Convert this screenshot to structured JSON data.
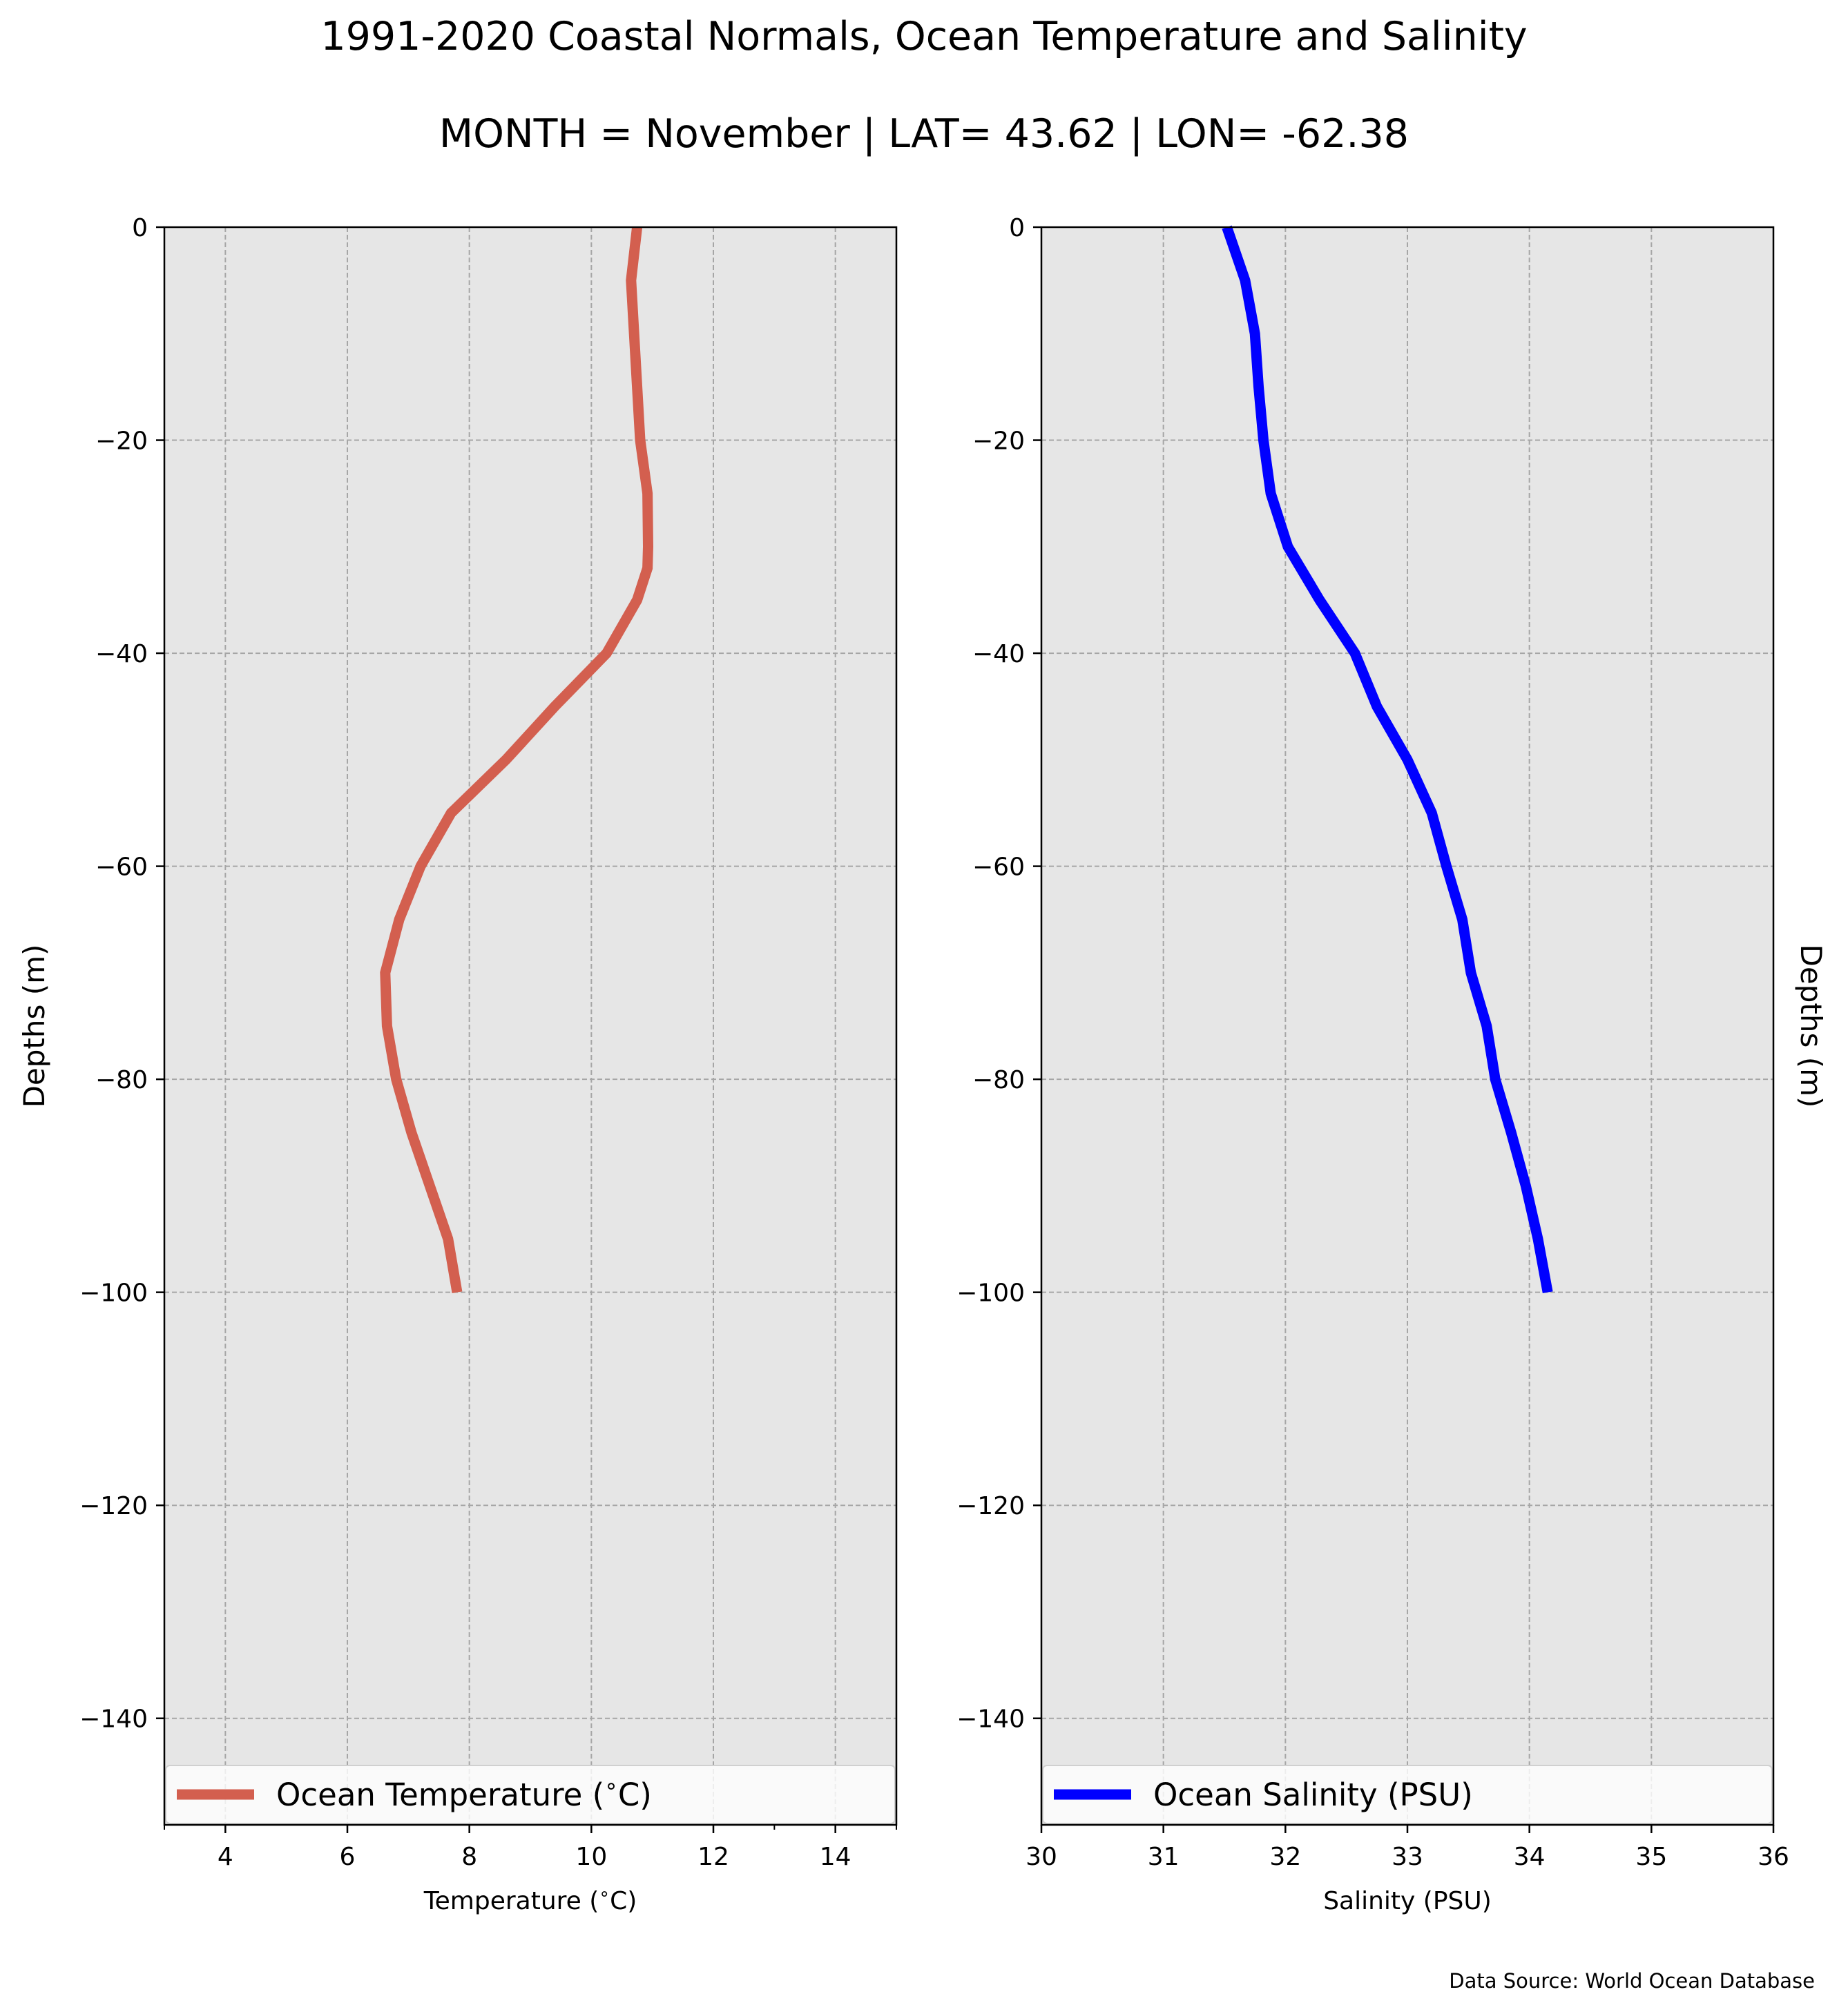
{
  "figure": {
    "title": "1991-2020 Coastal Normals, Ocean Temperature and Salinity",
    "subtitle": "MONTH = November | LAT= 43.62 | LON= -62.38",
    "source": "Data Source: World Ocean Database"
  },
  "chart_data": [
    {
      "type": "line",
      "title": "",
      "xlabel": "Temperature ($^\\circ$C)",
      "ylabel": "Depths (m)",
      "xlim": [
        3,
        15
      ],
      "ylim": [
        -150,
        0
      ],
      "x_ticks": [
        4,
        6,
        8,
        10,
        12,
        14
      ],
      "y_ticks": [
        0,
        -20,
        -40,
        -60,
        -80,
        -100,
        -120,
        -140
      ],
      "grid": true,
      "legend_position": "bottom",
      "background": "#e6e6e6",
      "series": [
        {
          "name": "Ocean Temperature ($^\\circ$C)",
          "color": "#d35f4f",
          "x": [
            10.75,
            10.65,
            10.7,
            10.75,
            10.8,
            10.92,
            10.93,
            10.92,
            10.75,
            10.25,
            9.4,
            8.6,
            7.7,
            7.2,
            6.85,
            6.62,
            6.65,
            6.8,
            7.05,
            7.35,
            7.65,
            7.8
          ],
          "y": [
            0,
            -5,
            -10,
            -15,
            -20,
            -25,
            -30,
            -32,
            -35,
            -40,
            -45,
            -50,
            -55,
            -60,
            -65,
            -70,
            -75,
            -80,
            -85,
            -90,
            -95,
            -100
          ]
        }
      ]
    },
    {
      "type": "line",
      "title": "",
      "xlabel": "Salinity (PSU)",
      "ylabel": "Depths (m)",
      "xlim": [
        30,
        36
      ],
      "ylim": [
        -150,
        0
      ],
      "x_ticks": [
        30,
        31,
        32,
        33,
        34,
        35,
        36
      ],
      "y_ticks": [
        0,
        -20,
        -40,
        -60,
        -80,
        -100,
        -120,
        -140
      ],
      "grid": true,
      "legend_position": "bottom",
      "background": "#e6e6e6",
      "series": [
        {
          "name": "Ocean Salinity (PSU)",
          "color": "#0000ff",
          "x": [
            31.52,
            31.67,
            31.75,
            31.78,
            31.82,
            31.88,
            32.02,
            32.28,
            32.57,
            32.75,
            33.0,
            33.2,
            33.32,
            33.45,
            33.52,
            33.65,
            33.72,
            33.85,
            33.97,
            34.07,
            34.15
          ],
          "y": [
            0,
            -5,
            -10,
            -15,
            -20,
            -25,
            -30,
            -35,
            -40,
            -45,
            -50,
            -55,
            -60,
            -65,
            -70,
            -75,
            -80,
            -85,
            -90,
            -95,
            -100
          ]
        }
      ]
    }
  ]
}
